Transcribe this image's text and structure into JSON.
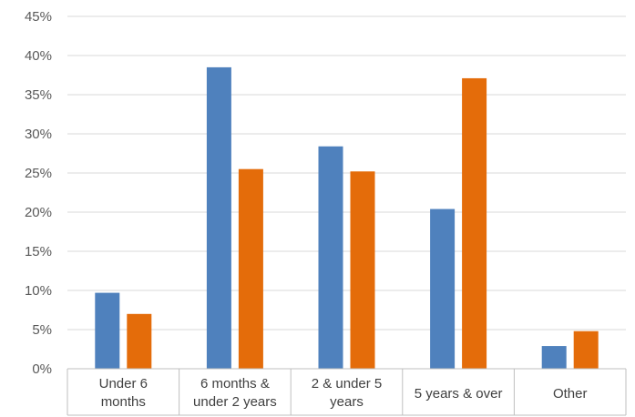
{
  "chart_data": {
    "type": "bar",
    "categories": [
      [
        "Under 6",
        "months"
      ],
      [
        "6 months &",
        "under 2 years"
      ],
      [
        "2 & under 5",
        "years"
      ],
      [
        "5 years & over"
      ],
      [
        "Other"
      ]
    ],
    "series": [
      {
        "values": [
          9.7,
          38.5,
          28.4,
          20.4,
          2.9
        ],
        "color": "#4f81bd"
      },
      {
        "values": [
          7.0,
          25.5,
          25.2,
          37.1,
          4.8
        ],
        "color": "#e46c0a"
      }
    ],
    "y_ticks": [
      "0%",
      "5%",
      "10%",
      "15%",
      "20%",
      "25%",
      "30%",
      "35%",
      "40%",
      "45%"
    ],
    "ylim": [
      0,
      45
    ],
    "grid": true,
    "legend": "none"
  }
}
